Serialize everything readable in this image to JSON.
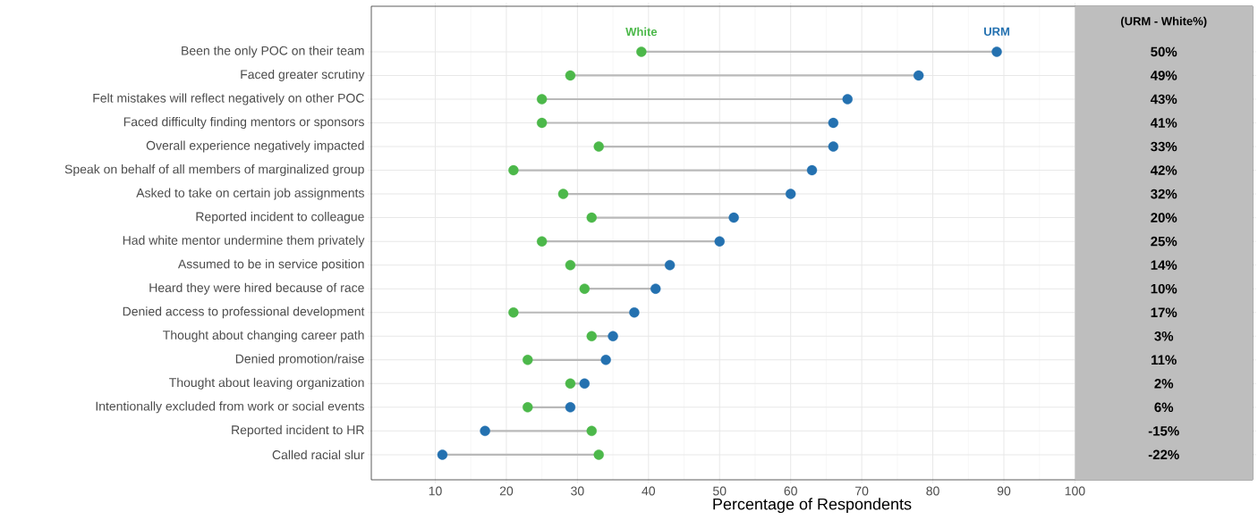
{
  "chart_data": {
    "type": "scatter",
    "orientation": "horizontal",
    "xlabel": "Percentage of Respondents",
    "categories": [
      "Been the only POC on their team",
      "Faced greater scrutiny",
      "Felt mistakes will reflect negatively on other POC",
      "Faced difficulty finding mentors or sponsors",
      "Overall experience negatively impacted",
      "Speak on behalf of all members of marginalized group",
      "Asked to take on certain job assignments",
      "Reported incident to colleague",
      "Had white mentor undermine them privately",
      "Assumed to be in service position",
      "Heard they were hired because of race",
      "Denied access to professional development",
      "Thought about changing career path",
      "Denied promotion/raise",
      "Thought about leaving organization",
      "Intentionally excluded from work or social events",
      "Reported incident to HR",
      "Called racial slur"
    ],
    "series": [
      {
        "name": "White",
        "color": "#4cb84a",
        "values": [
          39,
          29,
          25,
          25,
          33,
          21,
          28,
          32,
          25,
          29,
          31,
          21,
          32,
          23,
          29,
          23,
          32,
          33
        ]
      },
      {
        "name": "URM",
        "color": "#2471b0",
        "values": [
          89,
          78,
          68,
          66,
          66,
          63,
          60,
          52,
          50,
          43,
          41,
          38,
          35,
          34,
          31,
          29,
          17,
          11
        ]
      }
    ],
    "xlim": [
      1,
      125
    ],
    "xticks": [
      10,
      20,
      30,
      40,
      50,
      60,
      70,
      80,
      90,
      100
    ],
    "grid": true,
    "marker": "circle",
    "bands": [
      {
        "axis": "x",
        "from": 100,
        "to": 125,
        "color": "#bebebe"
      }
    ],
    "annotations": [
      "(URM - White%)",
      "50%",
      "49%",
      "43%",
      "41%",
      "33%",
      "42%",
      "32%",
      "20%",
      "25%",
      "14%",
      "10%",
      "17%",
      "3%",
      "11%",
      "2%",
      "6%",
      "-15%",
      "-22%"
    ]
  }
}
